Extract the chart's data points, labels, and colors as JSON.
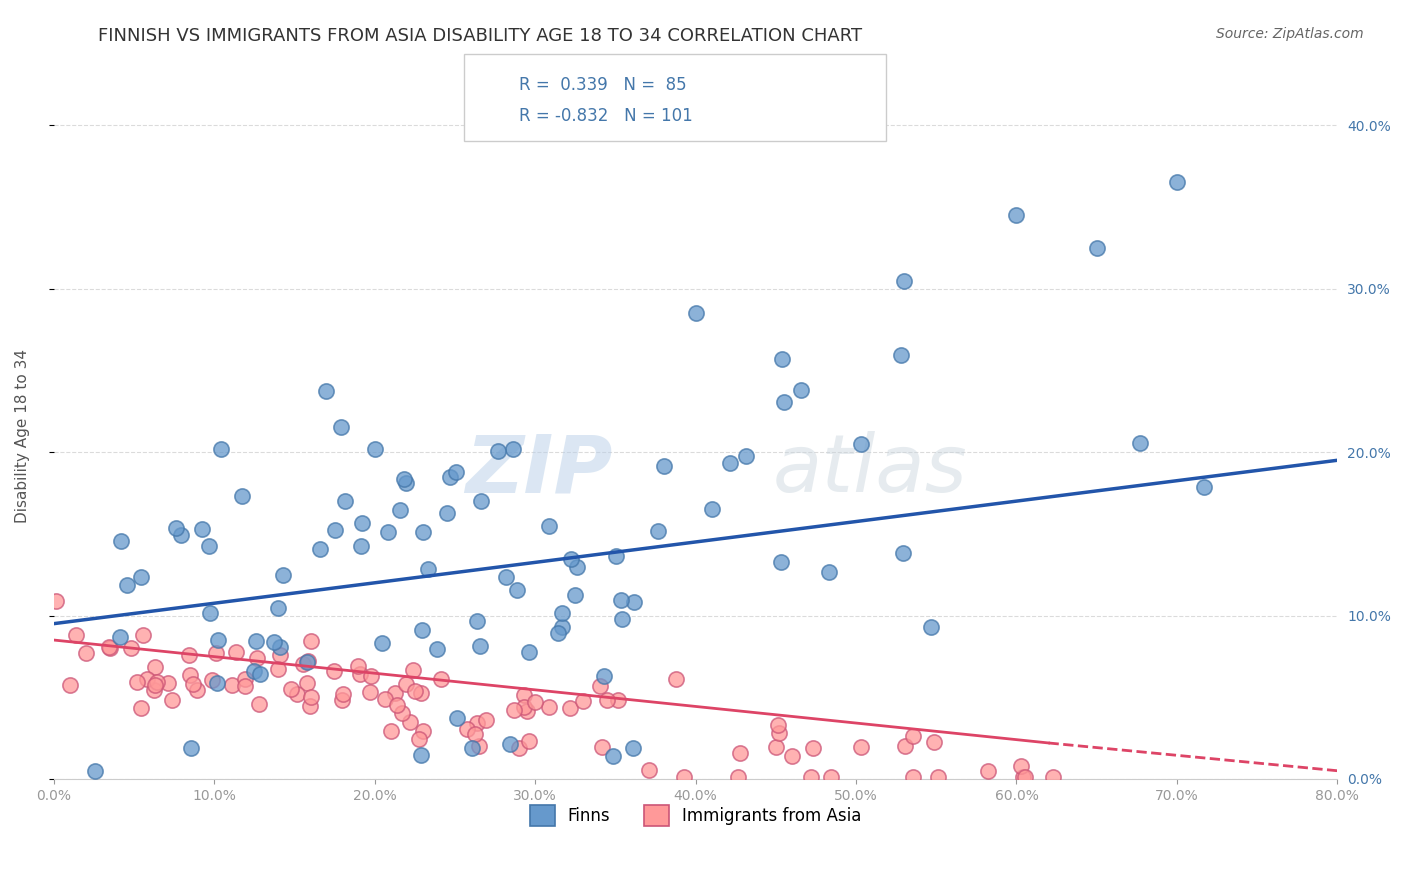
{
  "title": "FINNISH VS IMMIGRANTS FROM ASIA DISABILITY AGE 18 TO 34 CORRELATION CHART",
  "source": "Source: ZipAtlas.com",
  "ylabel": "Disability Age 18 to 34",
  "xlabel": "",
  "xlim": [
    0.0,
    0.8
  ],
  "ylim": [
    0.0,
    0.42
  ],
  "xticks": [
    0.0,
    0.1,
    0.2,
    0.3,
    0.4,
    0.5,
    0.6,
    0.7,
    0.8
  ],
  "xticklabels": [
    "0.0%",
    "10.0%",
    "20.0%",
    "30.0%",
    "40.0%",
    "50.0%",
    "60.0%",
    "70.0%",
    "80.0%"
  ],
  "yticks": [
    0.0,
    0.1,
    0.2,
    0.3,
    0.4
  ],
  "yticklabels_right": [
    "0.0%",
    "10.0%",
    "20.0%",
    "30.0%",
    "40.0%"
  ],
  "finns_color": "#6699cc",
  "finns_edge_color": "#4477aa",
  "immigrants_color": "#ff9999",
  "immigrants_edge_color": "#cc5577",
  "finns_line_color": "#2255aa",
  "immigrants_line_color": "#dd4466",
  "finns_R": 0.339,
  "finns_N": 85,
  "immigrants_R": -0.832,
  "immigrants_N": 101,
  "legend_label_finns": "Finns",
  "legend_label_immigrants": "Immigrants from Asia",
  "watermark_zip": "ZIP",
  "watermark_atlas": "atlas",
  "background_color": "#ffffff",
  "grid_color": "#cccccc",
  "title_color": "#333333",
  "axis_color": "#4477aa",
  "right_tick_color": "#4477aa"
}
